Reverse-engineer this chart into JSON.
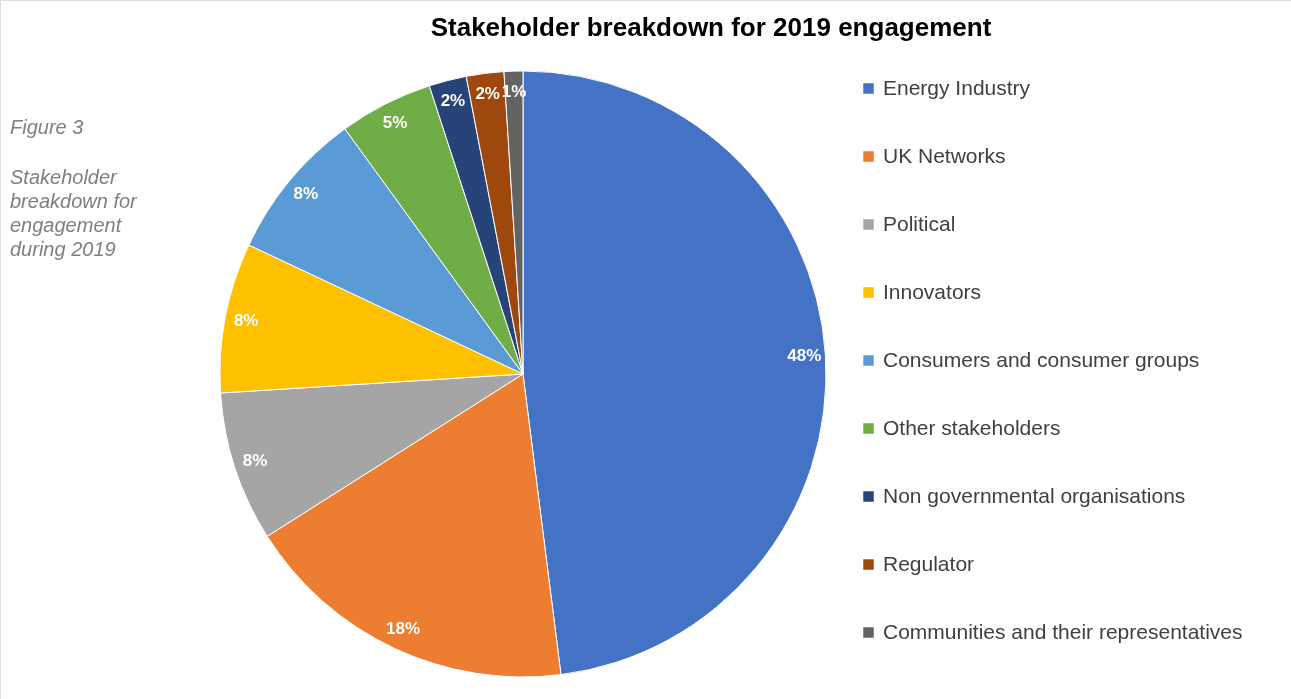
{
  "chart_data": {
    "type": "pie",
    "title": "Stakeholder breakdown for 2019 engagement",
    "categories": [
      "Energy Industry",
      "UK Networks",
      "Political",
      "Innovators",
      "Consumers and consumer groups",
      "Other stakeholders",
      "Non governmental organisations",
      "Regulator",
      "Communities and their representatives"
    ],
    "values": [
      48,
      18,
      8,
      8,
      8,
      5,
      2,
      2,
      1
    ],
    "colors": [
      "#4472c4",
      "#ed7d31",
      "#a5a5a5",
      "#ffc000",
      "#5b9bd5",
      "#70ad47",
      "#264478",
      "#9e480e",
      "#636363"
    ],
    "value_labels": [
      "48%",
      "18%",
      "8%",
      "8%",
      "8%",
      "5%",
      "2%",
      "2%",
      "1%"
    ],
    "legend": "right",
    "annotations": [
      "Figure 3",
      "Stakeholder\nbreakdown for\nengagement\nduring 2019"
    ]
  }
}
